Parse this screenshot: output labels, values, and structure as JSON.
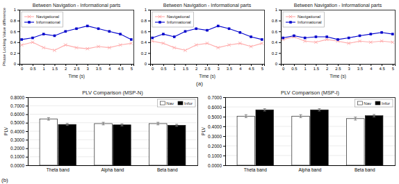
{
  "chart_data": [
    {
      "type": "line",
      "title": "Between Navigation - Informational parts",
      "xlabel": "Time (s)",
      "ylabel": "Phase Locking Value difference",
      "x": [
        0,
        0.5,
        1,
        1.5,
        2,
        2.5,
        3,
        3.5,
        4,
        4.5,
        5
      ],
      "series": [
        {
          "name": "Navigational",
          "color": "#ffaaaa",
          "marker": "x",
          "values": [
            0.35,
            0.4,
            0.3,
            0.25,
            0.35,
            0.3,
            0.28,
            0.32,
            0.3,
            0.35,
            0.38
          ]
        },
        {
          "name": "Informational",
          "color": "#0000cc",
          "marker": "square",
          "values": [
            0.45,
            0.48,
            0.55,
            0.52,
            0.6,
            0.65,
            0.7,
            0.65,
            0.6,
            0.55,
            0.45
          ]
        }
      ],
      "xlim": [
        -0.1,
        5.1
      ],
      "ylim": [
        0,
        1
      ],
      "xticks": [
        0,
        0.5,
        1,
        1.5,
        2,
        2.5,
        3,
        3.5,
        4,
        4.5,
        5
      ],
      "yticks": [
        0,
        0.2,
        0.4,
        0.6,
        0.8,
        1
      ],
      "legend": "upper left",
      "grid": false
    },
    {
      "type": "line",
      "title": "Between Navigation - Informational parts",
      "xlabel": "Time (s)",
      "x": [
        0,
        0.5,
        1,
        1.5,
        2,
        2.5,
        3,
        3.5,
        4,
        4.5,
        5
      ],
      "series": [
        {
          "name": "Navigational",
          "color": "#ffaaaa",
          "marker": "x",
          "values": [
            0.42,
            0.38,
            0.3,
            0.25,
            0.35,
            0.38,
            0.3,
            0.35,
            0.38,
            0.32,
            0.38
          ]
        },
        {
          "name": "Informational",
          "color": "#0000cc",
          "marker": "square",
          "values": [
            0.48,
            0.55,
            0.5,
            0.6,
            0.65,
            0.62,
            0.7,
            0.65,
            0.58,
            0.5,
            0.45
          ]
        }
      ],
      "xlim": [
        -0.1,
        5.1
      ],
      "ylim": [
        0,
        1
      ],
      "xticks": [
        0,
        0.5,
        1,
        1.5,
        2,
        2.5,
        3,
        3.5,
        4,
        4.5,
        5
      ],
      "yticks": [
        0,
        0.2,
        0.4,
        0.6,
        0.8,
        1
      ],
      "legend": "upper left",
      "grid": false,
      "annotations": [
        "(a)"
      ]
    },
    {
      "type": "line",
      "title": "Between Navigation - Informational parts",
      "xlabel": "Time (s)",
      "x": [
        0,
        0.5,
        1,
        1.5,
        2,
        2.5,
        3,
        3.5,
        4,
        4.5,
        5
      ],
      "series": [
        {
          "name": "Navigational",
          "color": "#ffaaaa",
          "marker": "x",
          "values": [
            0.45,
            0.5,
            0.42,
            0.4,
            0.45,
            0.42,
            0.38,
            0.42,
            0.4,
            0.42,
            0.4
          ]
        },
        {
          "name": "Informational",
          "color": "#0000cc",
          "marker": "square",
          "values": [
            0.48,
            0.52,
            0.48,
            0.5,
            0.5,
            0.45,
            0.48,
            0.52,
            0.55,
            0.58,
            0.55
          ]
        }
      ],
      "xlim": [
        -0.1,
        5.1
      ],
      "ylim": [
        0,
        1
      ],
      "xticks": [
        0,
        0.5,
        1,
        1.5,
        2,
        2.5,
        3,
        3.5,
        4,
        4.5,
        5
      ],
      "yticks": [
        0,
        0.2,
        0.4,
        0.6,
        0.8,
        1
      ],
      "legend": "upper left",
      "grid": false
    },
    {
      "type": "bar",
      "title": "PLV Comparison (MSP-N)",
      "ylabel": "PLV",
      "categories": [
        "Theta band",
        "Alpha band",
        "Beta band"
      ],
      "series": [
        {
          "name": "Nav",
          "color": "#ffffff",
          "values": [
            0.545,
            0.49,
            0.49
          ],
          "errors": [
            0.015,
            0.015,
            0.015
          ]
        },
        {
          "name": "Infor",
          "color": "#000000",
          "values": [
            0.48,
            0.475,
            0.47
          ],
          "errors": [
            0.012,
            0.012,
            0.012
          ]
        }
      ],
      "ylim": [
        0,
        0.8
      ],
      "yticks": [
        {
          "value": 0.0,
          "label": "0.0000"
        },
        {
          "value": 0.1,
          "label": "0.1000"
        },
        {
          "value": 0.2,
          "label": "0.2000"
        },
        {
          "value": 0.3,
          "label": "0.3000"
        },
        {
          "value": 0.4,
          "label": "0.4000"
        },
        {
          "value": 0.5,
          "label": "0.5000"
        },
        {
          "value": 0.6,
          "label": "0.6000"
        },
        {
          "value": 0.7,
          "label": "0.7000"
        },
        {
          "value": 0.8,
          "label": "0.8000"
        }
      ],
      "legend": "upper right",
      "grid": true,
      "annotations": [
        "(b)"
      ]
    },
    {
      "type": "bar",
      "title": "PLV Comparison (MSP-I)",
      "ylabel": "PLV",
      "categories": [
        "Theta band",
        "Alpha band",
        "Beta band"
      ],
      "series": [
        {
          "name": "Nav",
          "color": "#ffffff",
          "values": [
            0.505,
            0.505,
            0.48
          ],
          "errors": [
            0.015,
            0.015,
            0.015
          ]
        },
        {
          "name": "Infor",
          "color": "#000000",
          "values": [
            0.57,
            0.57,
            0.51
          ],
          "errors": [
            0.012,
            0.012,
            0.012
          ]
        }
      ],
      "ylim": [
        0,
        0.7
      ],
      "yticks": [
        {
          "value": 0.0,
          "label": "0.0000"
        },
        {
          "value": 0.1,
          "label": "0.1000"
        },
        {
          "value": 0.2,
          "label": "0.2000"
        },
        {
          "value": 0.3,
          "label": "0.3000"
        },
        {
          "value": 0.4,
          "label": "0.4000"
        },
        {
          "value": 0.5,
          "label": "0.5000"
        },
        {
          "value": 0.6,
          "label": "0.6000"
        },
        {
          "value": 0.7,
          "label": "0.7000"
        }
      ],
      "legend": "upper right",
      "grid": true
    }
  ]
}
